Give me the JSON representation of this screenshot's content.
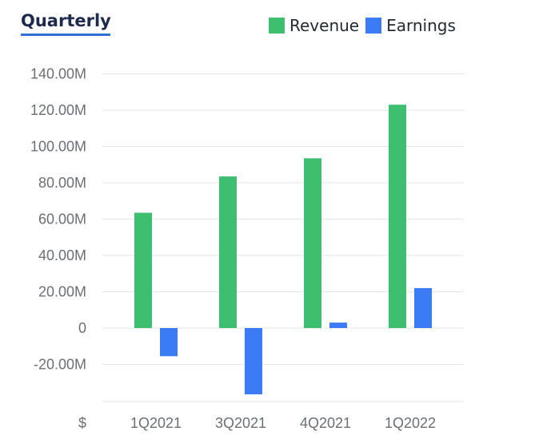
{
  "header": {
    "title": "Quarterly"
  },
  "chart_data": {
    "type": "bar",
    "categories": [
      "1Q2021",
      "3Q2021",
      "4Q2021",
      "1Q2022"
    ],
    "series": [
      {
        "name": "Revenue",
        "color": "#3dbf6f",
        "values": [
          63.5,
          83.5,
          93.5,
          123.0
        ]
      },
      {
        "name": "Earnings",
        "color": "#3b7cf6",
        "values": [
          -15.5,
          -36.5,
          3.0,
          22.0
        ]
      }
    ],
    "yticks": [
      140,
      120,
      100,
      80,
      60,
      40,
      20,
      0,
      -20
    ],
    "ytick_labels": [
      "140.00M",
      "120.00M",
      "100.00M",
      "80.00M",
      "60.00M",
      "40.00M",
      "20.00M",
      "0",
      "-20.00M"
    ],
    "ylim": [
      -40,
      145
    ],
    "xaxis_unit_label": "$",
    "grid": true,
    "legend": "top-right"
  }
}
